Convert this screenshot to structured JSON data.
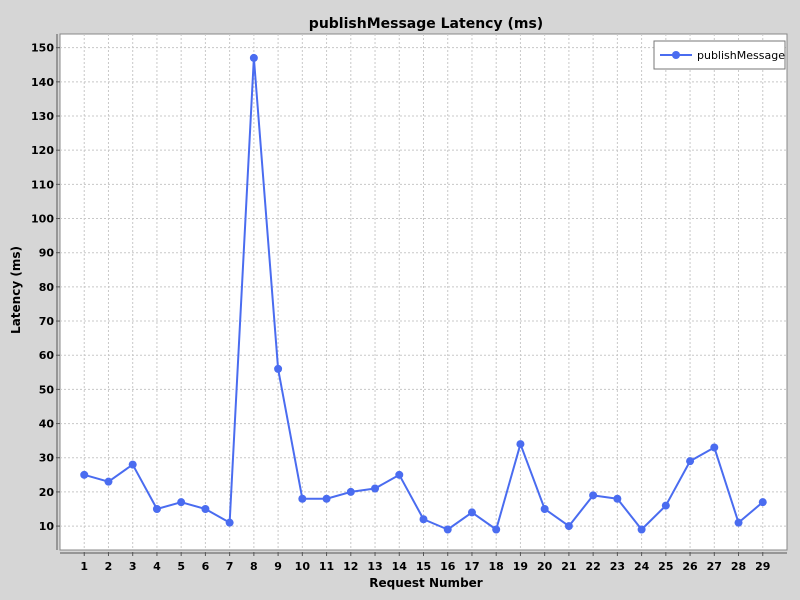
{
  "chart_data": {
    "type": "line",
    "title": "publishMessage Latency (ms)",
    "xlabel": "Request Number",
    "ylabel": "Latency (ms)",
    "x": [
      1,
      2,
      3,
      4,
      5,
      6,
      7,
      8,
      9,
      10,
      11,
      12,
      13,
      14,
      15,
      16,
      17,
      18,
      19,
      20,
      21,
      22,
      23,
      24,
      25,
      26,
      27,
      28,
      29
    ],
    "series": [
      {
        "name": "publishMessage",
        "color": "#4a6cf0",
        "values": [
          25,
          23,
          28,
          15,
          17,
          15,
          11,
          147,
          56,
          18,
          18,
          20,
          21,
          25,
          12,
          9,
          14,
          9,
          34,
          15,
          10,
          19,
          18,
          9,
          16,
          29,
          33,
          11,
          17
        ]
      }
    ],
    "yticks": [
      10,
      20,
      30,
      40,
      50,
      60,
      70,
      80,
      90,
      100,
      110,
      120,
      130,
      140,
      150
    ],
    "ylim": [
      3,
      154
    ],
    "xlim": [
      0,
      30
    ],
    "grid": true,
    "legend_position": "top-right"
  }
}
